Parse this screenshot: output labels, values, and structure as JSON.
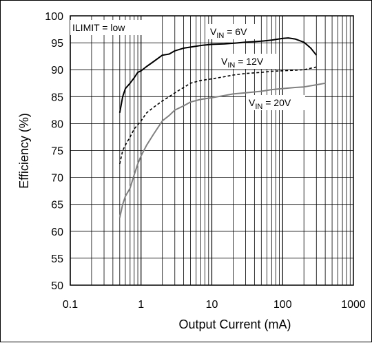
{
  "chart_data": {
    "type": "line",
    "xlabel": "Output Current (mA)",
    "ylabel": "Efficiency (%)",
    "x_scale": "log",
    "xlim": [
      0.1,
      1000
    ],
    "ylim": [
      50,
      100
    ],
    "x_ticks": [
      "0.1",
      "1",
      "10",
      "100",
      "1000"
    ],
    "y_ticks": [
      "50",
      "55",
      "60",
      "65",
      "70",
      "75",
      "80",
      "85",
      "90",
      "95",
      "100"
    ],
    "grid": true,
    "annotation": "ILIMIT = low",
    "series": [
      {
        "label_base": "V",
        "label_sub": "IN",
        "label_rest": " = 6V",
        "color": "#000000",
        "style": "solid",
        "x": [
          0.5,
          0.55,
          0.6,
          0.7,
          0.8,
          0.9,
          1.0,
          1.2,
          1.5,
          2.0,
          2.5,
          3,
          4,
          5,
          7,
          10,
          15,
          20,
          30,
          40,
          50,
          70,
          100,
          120,
          150,
          200,
          250,
          300
        ],
        "y": [
          82,
          85,
          86.5,
          87.5,
          88.5,
          89.5,
          89.8,
          90.6,
          91.5,
          92.7,
          92.9,
          93.5,
          94,
          94.2,
          94.5,
          94.7,
          94.8,
          94.9,
          95.1,
          95.2,
          95.3,
          95.5,
          95.8,
          95.9,
          95.7,
          95.1,
          94,
          92.7
        ]
      },
      {
        "label_base": "V",
        "label_sub": "IN",
        "label_rest": " = 12V",
        "color": "#000000",
        "style": "dotted",
        "x": [
          0.5,
          0.55,
          0.6,
          0.7,
          0.8,
          1.0,
          1.2,
          1.5,
          2.0,
          2.5,
          3,
          4,
          5,
          7,
          10,
          15,
          20,
          30,
          50,
          70,
          100,
          150,
          200,
          300
        ],
        "y": [
          72.5,
          75,
          76,
          77.5,
          79,
          80.5,
          82,
          83,
          84.2,
          85,
          85.7,
          86.7,
          87.5,
          88,
          88.3,
          88.7,
          89,
          89.3,
          89.5,
          89.7,
          89.8,
          89.9,
          90,
          90.5
        ]
      },
      {
        "label_base": "V",
        "label_sub": "IN",
        "label_rest": " = 20V",
        "color": "#808080",
        "style": "solid",
        "x": [
          0.5,
          0.55,
          0.6,
          0.7,
          0.8,
          0.9,
          1.0,
          1.2,
          1.5,
          2.0,
          2.5,
          3,
          4,
          5,
          7,
          10,
          15,
          20,
          30,
          50,
          70,
          100,
          150,
          200,
          300,
          400
        ],
        "y": [
          62.5,
          65,
          66.5,
          68,
          70.5,
          72.5,
          74,
          76,
          78,
          80.5,
          81.5,
          82.5,
          83.3,
          84,
          84.5,
          84.8,
          85.2,
          85.5,
          85.7,
          86,
          86.3,
          86.5,
          86.7,
          86.8,
          87.2,
          87.5
        ]
      }
    ]
  }
}
